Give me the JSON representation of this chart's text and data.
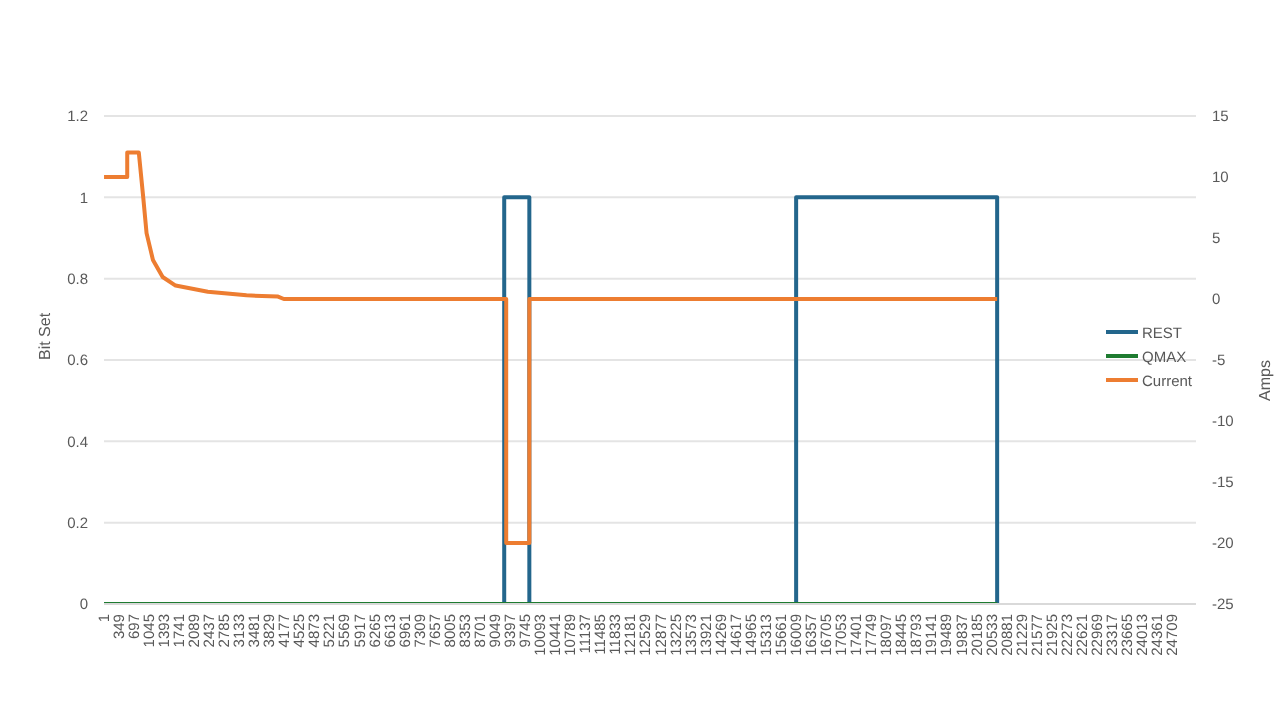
{
  "chart_data": {
    "type": "line",
    "ylabel": "Bit Set",
    "y2label": "Amps",
    "xlim": [
      0,
      25250
    ],
    "xticks": [
      1,
      349,
      697,
      1045,
      1393,
      1741,
      2089,
      2437,
      2785,
      3133,
      3481,
      3829,
      4177,
      4525,
      4873,
      5221,
      5569,
      5917,
      6265,
      6613,
      6961,
      7309,
      7657,
      8005,
      8353,
      8701,
      9049,
      9397,
      9745,
      10093,
      10441,
      10789,
      11137,
      11485,
      11833,
      12181,
      12529,
      12877,
      13225,
      13573,
      13921,
      14269,
      14617,
      14965,
      15313,
      15661,
      16009,
      16357,
      16705,
      17053,
      17401,
      17749,
      18097,
      18445,
      18793,
      19141,
      19489,
      19837,
      20185,
      20533,
      20881,
      21229,
      21577,
      21925,
      22273,
      22621,
      22969,
      23317,
      23665,
      24013,
      24361,
      24709
    ],
    "ylim": [
      0,
      1.2
    ],
    "yticks": [
      0,
      0.2,
      0.4,
      0.6,
      0.8,
      1,
      1.2
    ],
    "y2lim": [
      -25,
      15
    ],
    "y2ticks": [
      -25,
      -20,
      -15,
      -10,
      -5,
      0,
      5,
      10,
      15
    ],
    "grid": "y",
    "legend": "right",
    "marker": "none",
    "line_style": "solid",
    "series": [
      {
        "name": "REST",
        "type": "step",
        "color": "#23668c",
        "x": [
          1,
          9254,
          9835,
          16004,
          20652
        ],
        "values": [
          0,
          1,
          0,
          1,
          0
        ]
      },
      {
        "name": "QMAX",
        "type": "step",
        "color": "#1e7b30",
        "x": [
          1,
          20652
        ],
        "values": [
          0,
          0
        ]
      },
      {
        "name": "Current",
        "axis": "y2",
        "color": "#ed7d31",
        "x": [
          1,
          537,
          537,
          805,
          908,
          984,
          1132,
          1356,
          1655,
          2401,
          3295,
          4024,
          4158,
          9300,
          9300,
          9835,
          9835,
          20652
        ],
        "values": [
          10,
          10,
          12,
          12,
          8.3,
          5.4,
          3.2,
          1.8,
          1.1,
          0.6,
          0.3,
          0.2,
          0,
          0,
          -20,
          -20,
          0,
          0
        ]
      }
    ]
  }
}
